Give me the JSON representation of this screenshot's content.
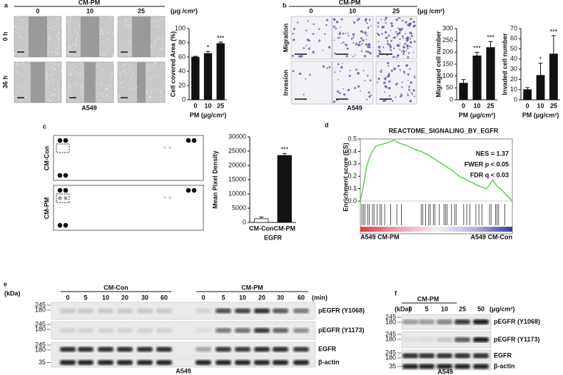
{
  "panels": {
    "a": {
      "label": "a",
      "header": "CM-PM",
      "doses": [
        "0",
        "10",
        "25"
      ],
      "unit": "(μg /cm²)",
      "rows": [
        "0 h",
        "36 h"
      ],
      "cell_line": "A549"
    },
    "b": {
      "label": "b",
      "header": "CM-PM",
      "doses": [
        "0",
        "10",
        "25"
      ],
      "unit": "(μg /cm²)",
      "rows": [
        "Migration",
        "Invasion"
      ],
      "cell_line": "A549"
    },
    "c": {
      "label": "c",
      "rows": [
        "CM-Con",
        "CM-PM"
      ]
    },
    "d": {
      "label": "d"
    },
    "e": {
      "label": "e",
      "kda": "(kDa)",
      "unit": "(min)",
      "cell_line": "A549",
      "groups": [
        {
          "name": "CM-Con",
          "times": [
            "0",
            "5",
            "10",
            "20",
            "30",
            "60"
          ]
        },
        {
          "name": "CM-PM",
          "times": [
            "0",
            "5",
            "10",
            "20",
            "30",
            "60"
          ]
        }
      ],
      "blots": [
        {
          "name": "pEGFR (Y1068)",
          "markers": [
            "245",
            "180"
          ]
        },
        {
          "name": "pEGFR (Y1173)",
          "markers": [
            "245",
            "180"
          ]
        },
        {
          "name": "EGFR",
          "markers": [
            "245",
            "180"
          ]
        },
        {
          "name": "β-actin",
          "markers": [
            "35"
          ]
        }
      ]
    },
    "f": {
      "label": "f",
      "kda": "(kDa)",
      "header": "CM-PM",
      "doses": [
        "0",
        "5",
        "10",
        "25",
        "50"
      ],
      "unit": "(μg/cm²)",
      "cell_line": "A549",
      "blots": [
        {
          "name": "pEGFR (Y1068)",
          "markers": [
            "245",
            "180"
          ]
        },
        {
          "name": "pEGFR (Y1173)",
          "markers": [
            "245",
            "180"
          ]
        },
        {
          "name": "EGFR",
          "markers": [
            "245",
            "180"
          ]
        },
        {
          "name": "β-actin",
          "markers": [
            "35"
          ]
        }
      ]
    }
  },
  "chart_data": [
    {
      "type": "bar",
      "categories": [
        "0",
        "10",
        "25"
      ],
      "values": [
        60,
        65,
        79
      ],
      "errors": [
        1,
        3,
        2
      ],
      "significance": [
        null,
        "*",
        "***"
      ],
      "color": "#111111",
      "ylim": [
        0,
        100
      ],
      "yticks": [
        0,
        20,
        40,
        60,
        80,
        100
      ],
      "y_label": "Cell covered Area (%)",
      "x_label": "PM (μg/cm²)"
    },
    {
      "type": "bar",
      "categories": [
        "0",
        "10",
        "25"
      ],
      "values": [
        70,
        185,
        220
      ],
      "errors": [
        15,
        15,
        25
      ],
      "significance": [
        null,
        "***",
        "***"
      ],
      "color": "#111111",
      "ylim": [
        0,
        300
      ],
      "yticks": [
        0,
        50,
        100,
        150,
        200,
        250,
        300
      ],
      "y_label": "Migraged cell number",
      "x_label": "PM (μg/cm²)"
    },
    {
      "type": "bar",
      "categories": [
        "0",
        "10",
        "25"
      ],
      "values": [
        10,
        24,
        45
      ],
      "errors": [
        2,
        12,
        18
      ],
      "significance": [
        null,
        "*",
        "***"
      ],
      "color": "#111111",
      "ylim": [
        0,
        70
      ],
      "yticks": [
        0,
        10,
        20,
        30,
        40,
        50,
        60,
        70
      ],
      "y_label": "Invaded cell number",
      "x_label": "PM (μg/cm²)"
    },
    {
      "type": "bar",
      "categories": [
        "CM-Con",
        "CM-PM"
      ],
      "values": [
        1300,
        23500
      ],
      "errors": [
        600,
        700
      ],
      "significance": [
        null,
        "***"
      ],
      "colors": [
        "#ffffff",
        "#111111"
      ],
      "ylim": [
        0,
        30000
      ],
      "yticks": [
        0,
        5000,
        10000,
        15000,
        20000,
        25000,
        30000
      ],
      "y_label": "Mean Pixel Density",
      "x_label": "EGFR"
    },
    {
      "type": "line",
      "title": "REACTOME_SIGNALING_BY_EGFR",
      "y_label": "Enrichment score (ES)",
      "color": "#44cc33",
      "x": [
        0,
        2,
        4,
        6,
        8,
        10,
        12,
        15,
        18,
        20,
        22,
        25,
        30,
        35,
        40,
        45,
        50,
        55,
        60,
        65,
        70,
        75,
        80,
        83,
        85,
        87,
        90,
        93,
        96,
        100
      ],
      "values": [
        0,
        0.12,
        0.27,
        0.35,
        0.4,
        0.44,
        0.45,
        0.46,
        0.47,
        0.48,
        0.49,
        0.47,
        0.45,
        0.42,
        0.4,
        0.37,
        0.33,
        0.29,
        0.25,
        0.2,
        0.17,
        0.14,
        0.11,
        0.1,
        0.13,
        0.17,
        0.12,
        0.09,
        0.05,
        0
      ],
      "xlim": [
        0,
        100
      ],
      "ylim": [
        0,
        0.5
      ],
      "yticks": [
        {
          "value": 0,
          "label": "0.0"
        },
        0.1,
        0.2,
        0.3,
        0.4,
        0.5
      ],
      "hits": [
        1,
        2,
        3,
        5,
        6,
        8,
        9,
        11,
        13,
        14,
        16,
        20,
        24,
        27,
        40,
        41,
        43,
        45,
        46,
        48,
        49,
        52,
        55,
        56,
        57,
        60,
        62,
        63,
        68,
        70,
        72,
        76,
        78,
        80,
        85,
        86,
        89,
        90,
        91,
        95
      ],
      "annotations": [
        "NES = 1.37",
        "FWER p < 0.05",
        "FDR q < 0.03"
      ],
      "phenotypes": [
        "A549 CM-PM",
        "A549 CM-Con"
      ]
    }
  ]
}
